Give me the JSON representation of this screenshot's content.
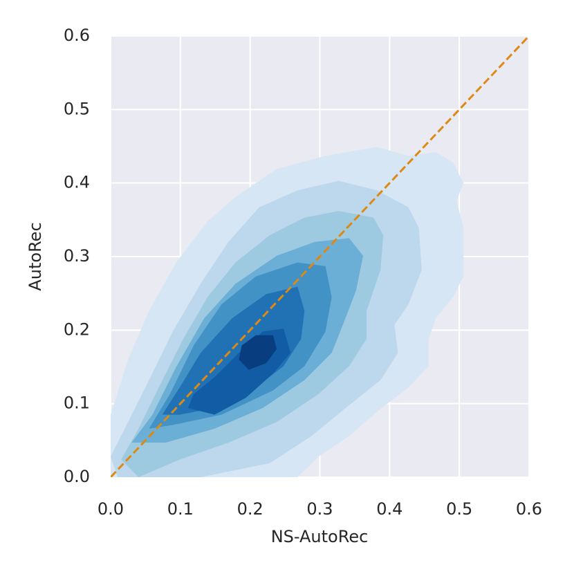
{
  "chart_data": {
    "type": "kde",
    "xlabel": "NS-AutoRec",
    "ylabel": "AutoRec",
    "xlim": [
      0,
      0.6
    ],
    "ylim": [
      0,
      0.6
    ],
    "xticks": [
      {
        "value": 0,
        "label": "0.0"
      },
      0.1,
      0.2,
      0.3,
      0.4,
      0.5,
      0.6
    ],
    "yticks": [
      {
        "value": 0,
        "label": "0.0"
      },
      0.1,
      0.2,
      0.3,
      0.4,
      0.5,
      0.6
    ],
    "grid": true,
    "background": "#eaeaf2",
    "contours": [
      {
        "color": "#d6e6f4",
        "x": [
          0,
          0.025,
          0.055,
          0.094,
          0.139,
          0.179,
          0.238,
          0.308,
          0.382,
          0.427,
          0.466,
          0.491,
          0.506,
          0.496,
          0.506,
          0.506,
          0.491,
          0.466,
          0.456,
          0.456,
          0.427,
          0.382,
          0.342,
          0.298,
          0.268,
          0
        ],
        "y": [
          0.085,
          0.16,
          0.226,
          0.292,
          0.348,
          0.381,
          0.419,
          0.437,
          0.449,
          0.437,
          0.442,
          0.428,
          0.4,
          0.376,
          0.339,
          0.273,
          0.245,
          0.216,
          0.188,
          0.151,
          0.122,
          0.089,
          0.056,
          0.028,
          0,
          0
        ]
      },
      {
        "color": "#bdd7ec",
        "x": [
          0,
          0.025,
          0.055,
          0.089,
          0.129,
          0.169,
          0.213,
          0.268,
          0.327,
          0.382,
          0.427,
          0.442,
          0.446,
          0.427,
          0.407,
          0.412,
          0.387,
          0.337,
          0.288,
          0.228,
          0.129,
          0.01
        ],
        "y": [
          0.028,
          0.075,
          0.132,
          0.198,
          0.263,
          0.32,
          0.367,
          0.39,
          0.403,
          0.39,
          0.367,
          0.339,
          0.282,
          0.235,
          0.207,
          0.169,
          0.132,
          0.094,
          0.056,
          0.019,
          0,
          0
        ]
      },
      {
        "color": "#9ecae1",
        "x": [
          0.015,
          0.04,
          0.069,
          0.104,
          0.139,
          0.179,
          0.228,
          0.278,
          0.327,
          0.377,
          0.391,
          0.387,
          0.367,
          0.367,
          0.342,
          0.298,
          0.238,
          0.169,
          0.099,
          0.04
        ],
        "y": [
          0.024,
          0.066,
          0.122,
          0.188,
          0.245,
          0.292,
          0.329,
          0.353,
          0.362,
          0.353,
          0.329,
          0.282,
          0.226,
          0.188,
          0.151,
          0.113,
          0.075,
          0.047,
          0.024,
          0
        ]
      },
      {
        "color": "#6baed6",
        "x": [
          0.03,
          0.06,
          0.094,
          0.134,
          0.179,
          0.238,
          0.293,
          0.342,
          0.362,
          0.352,
          0.333,
          0.317,
          0.278,
          0.218,
          0.149,
          0.079
        ],
        "y": [
          0.047,
          0.085,
          0.15,
          0.216,
          0.263,
          0.301,
          0.32,
          0.325,
          0.301,
          0.254,
          0.207,
          0.169,
          0.132,
          0.094,
          0.066,
          0.047
        ]
      },
      {
        "color": "#4292c6",
        "x": [
          0.055,
          0.085,
          0.119,
          0.159,
          0.208,
          0.268,
          0.308,
          0.317,
          0.308,
          0.278,
          0.233,
          0.159,
          0.089
        ],
        "y": [
          0.066,
          0.113,
          0.179,
          0.235,
          0.273,
          0.292,
          0.287,
          0.245,
          0.198,
          0.151,
          0.118,
          0.085,
          0.071
        ]
      },
      {
        "color": "#2171b5",
        "x": [
          0.074,
          0.099,
          0.129,
          0.174,
          0.223,
          0.268,
          0.278,
          0.273,
          0.248,
          0.208,
          0.149,
          0.099
        ],
        "y": [
          0.085,
          0.122,
          0.169,
          0.216,
          0.249,
          0.259,
          0.226,
          0.188,
          0.151,
          0.122,
          0.094,
          0.085
        ]
      },
      {
        "color": "#115ca5",
        "x": [
          0.111,
          0.119,
          0.149,
          0.184,
          0.218,
          0.248,
          0.258,
          0.233,
          0.194,
          0.149
        ],
        "y": [
          0.094,
          0.113,
          0.136,
          0.169,
          0.198,
          0.202,
          0.169,
          0.141,
          0.108,
          0.085
        ]
      },
      {
        "color": "#083d7f",
        "x": [
          0.188,
          0.208,
          0.233,
          0.238,
          0.223,
          0.198,
          0.184
        ],
        "y": [
          0.179,
          0.193,
          0.193,
          0.174,
          0.155,
          0.146,
          0.16
        ]
      }
    ],
    "reference_line": {
      "color": "#dd8a14",
      "dashed": true,
      "x": [
        0,
        0.6
      ],
      "y": [
        0,
        0.6
      ]
    }
  }
}
